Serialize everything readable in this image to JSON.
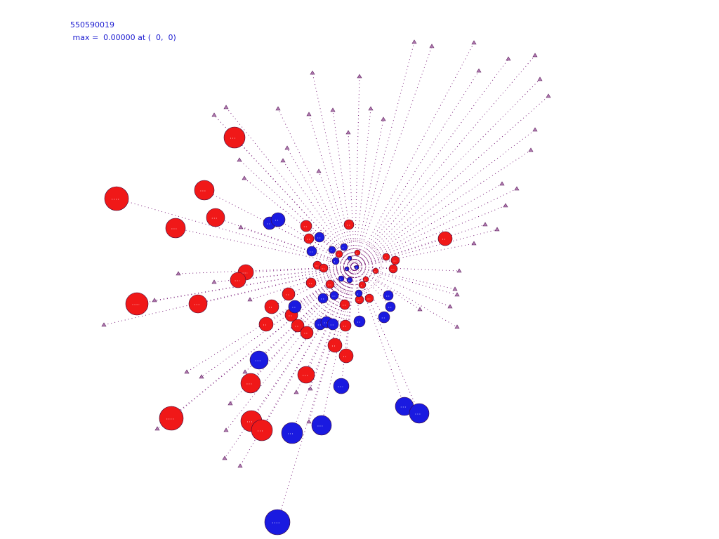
{
  "header": {
    "id": "550590019",
    "max_line": " max =  0.00000 at (  0,  0)"
  }
}
